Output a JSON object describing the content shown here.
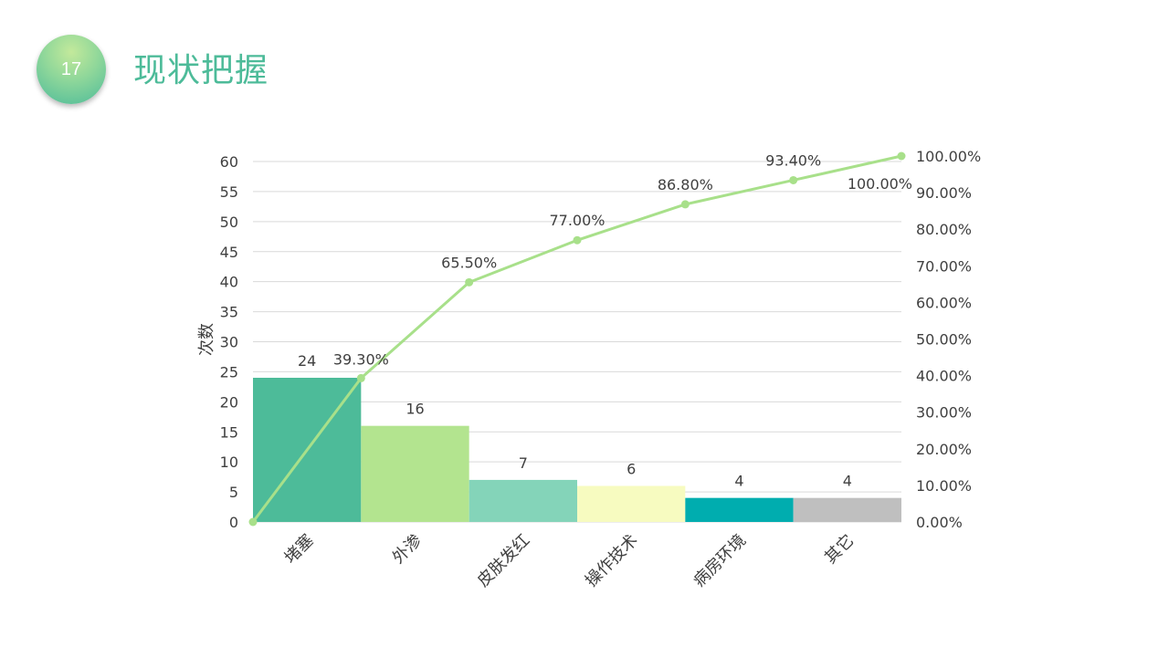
{
  "slide": {
    "page_number": "17",
    "title": "现状把握"
  },
  "colors": {
    "title": "#4dbb99",
    "line": "#a8e08a",
    "grid": "#d9d9d9",
    "text": "#404040"
  },
  "chart_data": {
    "type": "bar",
    "combo": "pareto",
    "title": "",
    "xlabel": "",
    "ylabel": "次数",
    "ylim": [
      0,
      60
    ],
    "yticks": [
      "0",
      "5",
      "10",
      "15",
      "20",
      "25",
      "30",
      "35",
      "40",
      "45",
      "50",
      "55",
      "60"
    ],
    "y2lim": [
      0,
      100
    ],
    "y2ticks": [
      "0.00%",
      "10.00%",
      "20.00%",
      "30.00%",
      "40.00%",
      "50.00%",
      "60.00%",
      "70.00%",
      "80.00%",
      "90.00%",
      "100.00%"
    ],
    "grid": true,
    "categories": [
      "堵塞",
      "外渗",
      "皮肤发红",
      "操作技术",
      "病房环境",
      "其它"
    ],
    "values": [
      24,
      16,
      7,
      6,
      4,
      4
    ],
    "value_labels": [
      "24",
      "16",
      "7",
      "6",
      "4",
      "4"
    ],
    "bar_colors": [
      "#4dbb99",
      "#b3e48f",
      "#84d4b9",
      "#f7fbc0",
      "#00adaf",
      "#bfbfbf"
    ],
    "cumulative": {
      "values": [
        0,
        39.3,
        65.5,
        77.0,
        86.8,
        93.4,
        100.0
      ],
      "labels": [
        "",
        "39.30%",
        "65.50%",
        "77.00%",
        "86.80%",
        "93.40%",
        "100.00%"
      ]
    }
  }
}
